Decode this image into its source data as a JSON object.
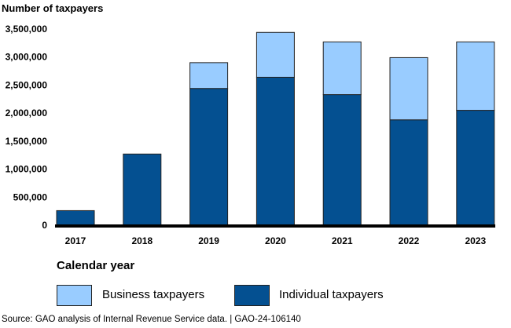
{
  "chart_data": {
    "type": "bar",
    "stacked": true,
    "title": "Number of taxpayers",
    "xlabel": "Calendar year",
    "ylabel": "Number of taxpayers",
    "categories": [
      "2017",
      "2018",
      "2019",
      "2020",
      "2021",
      "2022",
      "2023"
    ],
    "series": [
      {
        "name": "Individual taxpayers",
        "color": "#045091",
        "values": [
          260000,
          1270000,
          2440000,
          2640000,
          2330000,
          1880000,
          2050000
        ]
      },
      {
        "name": "Business taxpayers",
        "color": "#99ccff",
        "values": [
          0,
          0,
          460000,
          800000,
          940000,
          1110000,
          1220000
        ]
      }
    ],
    "ylim": [
      0,
      3500000
    ],
    "yticks": [
      0,
      500000,
      1000000,
      1500000,
      2000000,
      2500000,
      3000000,
      3500000
    ],
    "ytick_labels": [
      "0",
      "500,000",
      "1,000,000",
      "1,500,000",
      "2,000,000",
      "2,500,000",
      "3,000,000",
      "3,500,000"
    ],
    "grid": false,
    "legend": "bottom"
  },
  "legend": {
    "business": "Business taxpayers",
    "individual": "Individual taxpayers"
  },
  "source": "Source: GAO analysis of Internal Revenue Service data.  |  GAO-24-106140"
}
